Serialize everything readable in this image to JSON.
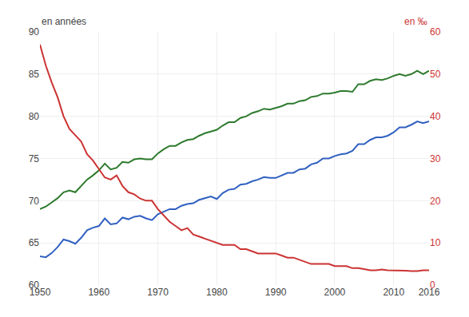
{
  "chart_data": {
    "type": "line",
    "ylabel": "en années",
    "y2label": "en ‰",
    "x": [
      1950,
      1951,
      1952,
      1953,
      1954,
      1955,
      1956,
      1957,
      1958,
      1959,
      1960,
      1961,
      1962,
      1963,
      1964,
      1965,
      1966,
      1967,
      1968,
      1969,
      1970,
      1971,
      1972,
      1973,
      1974,
      1975,
      1976,
      1977,
      1978,
      1979,
      1980,
      1981,
      1982,
      1983,
      1984,
      1985,
      1986,
      1987,
      1988,
      1989,
      1990,
      1991,
      1992,
      1993,
      1994,
      1995,
      1996,
      1997,
      1998,
      1999,
      2000,
      2001,
      2002,
      2003,
      2004,
      2005,
      2006,
      2007,
      2008,
      2009,
      2010,
      2011,
      2012,
      2013,
      2014,
      2015,
      2016
    ],
    "xlim": [
      1950,
      2016
    ],
    "xticks": [
      1950,
      1960,
      1970,
      1980,
      1990,
      2000,
      2010,
      2016
    ],
    "ylim": [
      60,
      90
    ],
    "yticks": [
      60,
      65,
      70,
      75,
      80,
      85,
      90
    ],
    "y2lim": [
      0,
      60
    ],
    "y2ticks": [
      0,
      10,
      20,
      30,
      40,
      50,
      60
    ],
    "grid": true,
    "series": [
      {
        "color": "#2d7a2d",
        "values": [
          69.0,
          69.3,
          69.8,
          70.3,
          71.0,
          71.2,
          71.0,
          71.8,
          72.5,
          73.0,
          73.6,
          74.4,
          73.7,
          73.9,
          74.6,
          74.5,
          74.9,
          75.0,
          74.9,
          74.9,
          75.6,
          76.1,
          76.5,
          76.5,
          76.9,
          77.2,
          77.3,
          77.7,
          78.0,
          78.2,
          78.4,
          78.9,
          79.3,
          79.3,
          79.8,
          80.0,
          80.4,
          80.6,
          80.9,
          80.8,
          81.0,
          81.2,
          81.5,
          81.5,
          81.8,
          81.9,
          82.3,
          82.4,
          82.7,
          82.7,
          82.8,
          83.0,
          83.0,
          82.9,
          83.8,
          83.8,
          84.2,
          84.4,
          84.3,
          84.5,
          84.8,
          85.0,
          84.8,
          85.0,
          85.4,
          85.0,
          85.4
        ]
      },
      {
        "color": "#3060c0",
        "values": [
          63.4,
          63.3,
          63.8,
          64.5,
          65.4,
          65.2,
          64.9,
          65.6,
          66.5,
          66.8,
          67.0,
          67.9,
          67.2,
          67.3,
          68.0,
          67.8,
          68.1,
          68.2,
          67.9,
          67.7,
          68.4,
          68.7,
          69.0,
          69.0,
          69.4,
          69.6,
          69.7,
          70.1,
          70.3,
          70.5,
          70.2,
          70.9,
          71.3,
          71.4,
          71.9,
          72.0,
          72.3,
          72.5,
          72.8,
          72.7,
          72.7,
          73.0,
          73.3,
          73.3,
          73.7,
          73.8,
          74.3,
          74.5,
          75.0,
          75.0,
          75.3,
          75.5,
          75.6,
          75.9,
          76.7,
          76.7,
          77.2,
          77.5,
          77.5,
          77.7,
          78.1,
          78.7,
          78.7,
          79.0,
          79.4,
          79.2,
          79.4
        ]
      },
      {
        "color": "#cc3333",
        "axis": "y2",
        "values": [
          57.0,
          52.0,
          48.0,
          44.5,
          40.0,
          37.0,
          35.5,
          34.0,
          31.0,
          29.5,
          27.5,
          25.5,
          25.0,
          26.0,
          23.5,
          22.0,
          21.5,
          20.5,
          20.0,
          20.0,
          18.0,
          16.5,
          15.0,
          14.0,
          13.0,
          13.5,
          12.0,
          11.5,
          11.0,
          10.5,
          10.0,
          9.5,
          9.5,
          9.5,
          8.5,
          8.5,
          8.0,
          7.5,
          7.5,
          7.5,
          7.5,
          7.0,
          6.5,
          6.5,
          6.0,
          5.5,
          5.0,
          5.0,
          5.0,
          5.0,
          4.5,
          4.5,
          4.5,
          4.0,
          4.0,
          3.8,
          3.5,
          3.5,
          3.7,
          3.5,
          3.5,
          3.5,
          3.4,
          3.3,
          3.3,
          3.5,
          3.5
        ]
      }
    ]
  }
}
